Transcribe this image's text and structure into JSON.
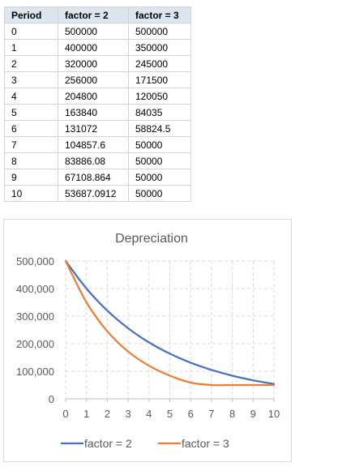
{
  "table": {
    "headers": [
      "Period",
      "factor = 2",
      "factor = 3"
    ],
    "rows": [
      [
        "0",
        "500000",
        "500000"
      ],
      [
        "1",
        "400000",
        "350000"
      ],
      [
        "2",
        "320000",
        "245000"
      ],
      [
        "3",
        "256000",
        "171500"
      ],
      [
        "4",
        "204800",
        "120050"
      ],
      [
        "5",
        "163840",
        "84035"
      ],
      [
        "6",
        "131072",
        "58824.5"
      ],
      [
        "7",
        "104857.6",
        "50000"
      ],
      [
        "8",
        "83886.08",
        "50000"
      ],
      [
        "9",
        "67108.864",
        "50000"
      ],
      [
        "10",
        "53687.0912",
        "50000"
      ]
    ]
  },
  "chart_data": {
    "type": "line",
    "title": "Depreciation",
    "xlabel": "",
    "ylabel": "",
    "x": [
      0,
      1,
      2,
      3,
      4,
      5,
      6,
      7,
      8,
      9,
      10
    ],
    "xlim": [
      0,
      10
    ],
    "ylim": [
      0,
      500000
    ],
    "y_ticks": [
      "0",
      "100,000",
      "200,000",
      "300,000",
      "400,000",
      "500,000"
    ],
    "x_ticks": [
      "0",
      "1",
      "2",
      "3",
      "4",
      "5",
      "6",
      "7",
      "8",
      "9",
      "10"
    ],
    "grid": true,
    "smooth": true,
    "legend_position": "bottom",
    "series": [
      {
        "name": "factor = 2",
        "color": "#4472c4",
        "values": [
          500000,
          400000,
          320000,
          256000,
          204800,
          163840,
          131072,
          104857.6,
          83886.08,
          67108.864,
          53687.0912
        ]
      },
      {
        "name": "factor = 3",
        "color": "#ed7d31",
        "values": [
          500000,
          350000,
          245000,
          171500,
          120050,
          84035,
          58824.5,
          50000,
          50000,
          50000,
          50000
        ]
      }
    ]
  }
}
